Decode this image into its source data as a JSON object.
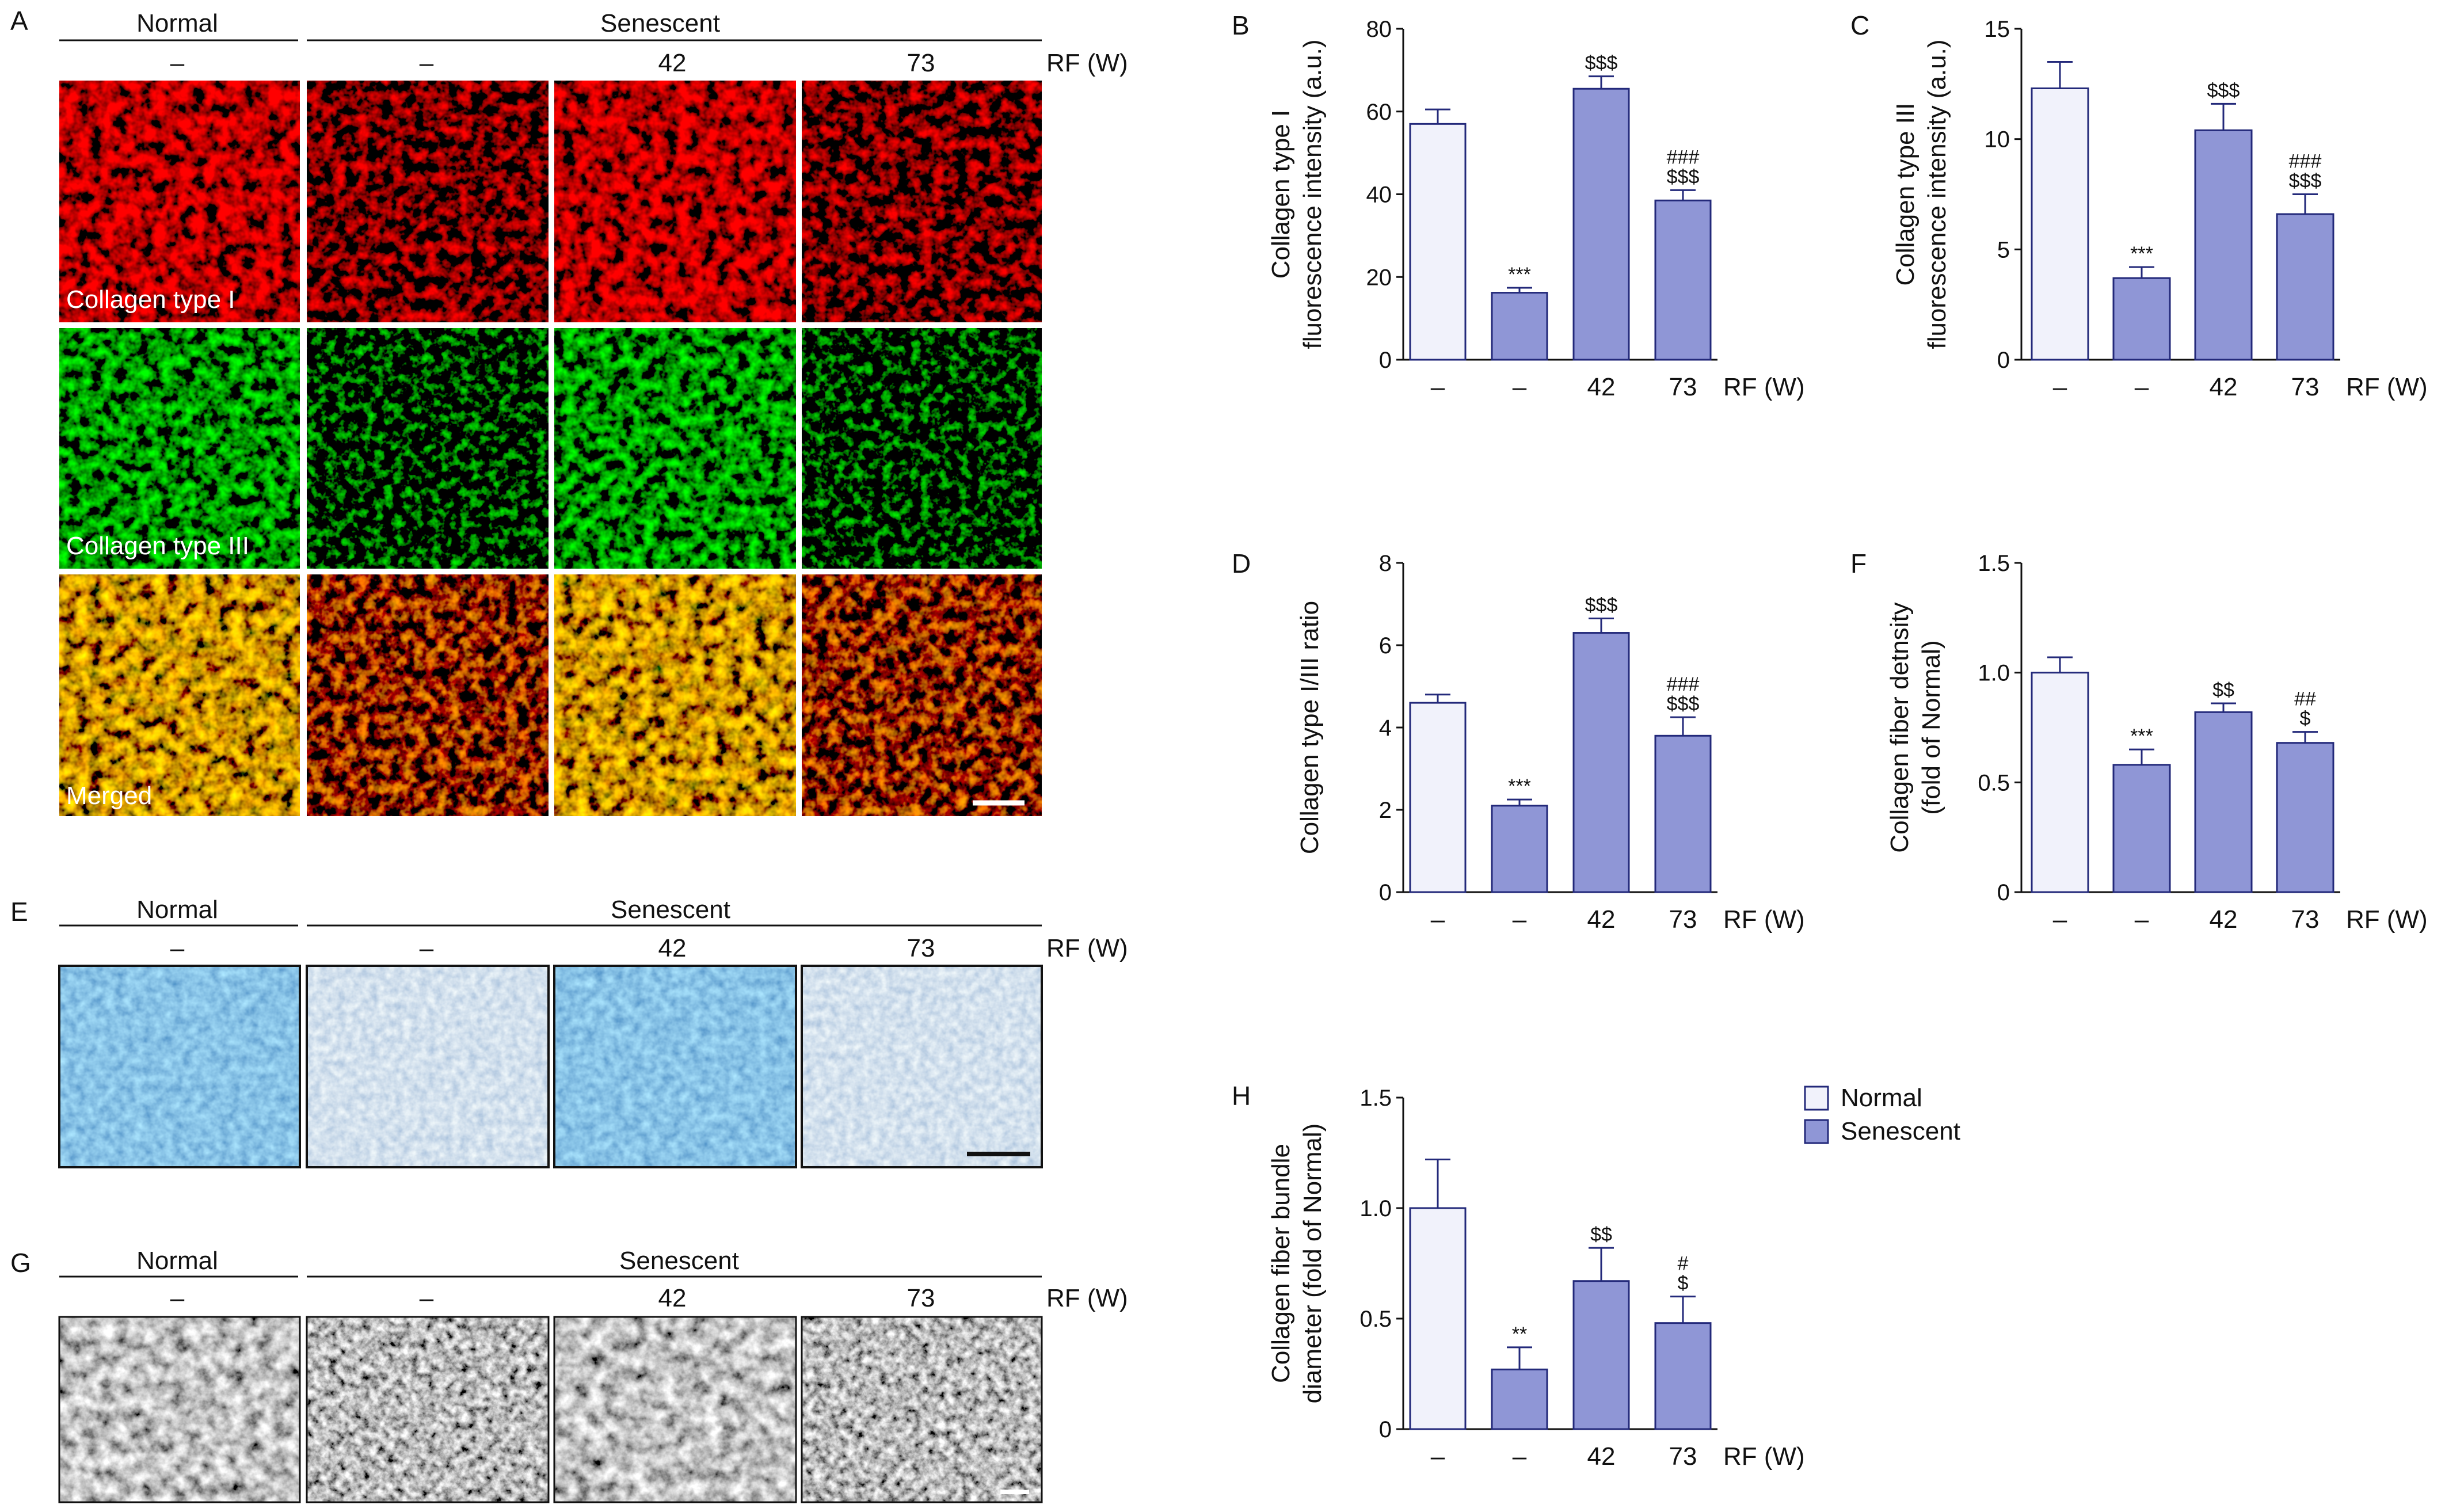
{
  "colors": {
    "normal_fill": "#f1f2fb",
    "senescent_fill": "#8f96d6",
    "bar_edge": "#23297a"
  },
  "labels": {
    "A": "A",
    "E": "E",
    "G": "G",
    "normal": "Normal",
    "senescent": "Senescent",
    "rf_w": "RF (W)",
    "dash": "–",
    "rf42": "42",
    "rf73": "73"
  },
  "panel_a_rows": [
    "Collagen type I",
    "Collagen type III",
    "Merged"
  ],
  "legend": {
    "normal": "Normal",
    "senescent": "Senescent"
  },
  "chart_data": [
    {
      "panel": "B",
      "type": "bar",
      "ylabel": [
        "Collagen type I",
        "fluorescence intensity (a.u.)"
      ],
      "categories": [
        "–",
        "–",
        "42",
        "73"
      ],
      "groups": [
        "Normal",
        "Senescent",
        "Senescent",
        "Senescent"
      ],
      "xlabel": "RF (W)",
      "values": [
        57,
        16.2,
        65.5,
        38.5
      ],
      "errors": [
        3.5,
        1.2,
        3,
        2.5
      ],
      "ylim": [
        0,
        80
      ],
      "yticks": [
        0,
        20,
        40,
        60,
        80
      ],
      "annotations": [
        "",
        "***",
        "$$$",
        "###\n$$$"
      ]
    },
    {
      "panel": "C",
      "type": "bar",
      "ylabel": [
        "Collagen type III",
        "fluorescence intensity (a.u.)"
      ],
      "categories": [
        "–",
        "–",
        "42",
        "73"
      ],
      "groups": [
        "Normal",
        "Senescent",
        "Senescent",
        "Senescent"
      ],
      "xlabel": "RF (W)",
      "values": [
        12.3,
        3.7,
        10.4,
        6.6
      ],
      "errors": [
        1.2,
        0.5,
        1.2,
        0.9
      ],
      "ylim": [
        0,
        15
      ],
      "yticks": [
        0,
        5,
        10,
        15
      ],
      "annotations": [
        "",
        "***",
        "$$$",
        "###\n$$$"
      ]
    },
    {
      "panel": "D",
      "type": "bar",
      "ylabel": [
        "Collagen type I/III ratio"
      ],
      "categories": [
        "–",
        "–",
        "42",
        "73"
      ],
      "groups": [
        "Normal",
        "Senescent",
        "Senescent",
        "Senescent"
      ],
      "xlabel": "RF (W)",
      "values": [
        4.6,
        2.1,
        6.3,
        3.8
      ],
      "errors": [
        0.2,
        0.15,
        0.35,
        0.45
      ],
      "ylim": [
        0,
        8
      ],
      "yticks": [
        0,
        2,
        4,
        6,
        8
      ],
      "annotations": [
        "",
        "***",
        "$$$",
        "###\n$$$"
      ]
    },
    {
      "panel": "F",
      "type": "bar",
      "ylabel": [
        "Collagen fiber detnsity",
        "(fold of Normal)"
      ],
      "categories": [
        "–",
        "–",
        "42",
        "73"
      ],
      "groups": [
        "Normal",
        "Senescent",
        "Senescent",
        "Senescent"
      ],
      "xlabel": "RF (W)",
      "values": [
        1.0,
        0.58,
        0.82,
        0.68
      ],
      "errors": [
        0.07,
        0.07,
        0.04,
        0.05
      ],
      "ylim": [
        0,
        1.5
      ],
      "yticks": [
        "0",
        "0.5",
        "1.0",
        "1.5"
      ],
      "annotations": [
        "",
        "***",
        "$$",
        "##\n$"
      ]
    },
    {
      "panel": "H",
      "type": "bar",
      "ylabel": [
        "Collagen fiber bundle",
        "diameter (fold of Normal)"
      ],
      "categories": [
        "–",
        "–",
        "42",
        "73"
      ],
      "groups": [
        "Normal",
        "Senescent",
        "Senescent",
        "Senescent"
      ],
      "xlabel": "RF (W)",
      "values": [
        1.0,
        0.27,
        0.67,
        0.48
      ],
      "errors": [
        0.22,
        0.1,
        0.15,
        0.12
      ],
      "ylim": [
        0,
        1.5
      ],
      "yticks": [
        "0",
        "0.5",
        "1.0",
        "1.5"
      ],
      "annotations": [
        "",
        "**",
        "$$",
        "#\n$"
      ]
    }
  ]
}
